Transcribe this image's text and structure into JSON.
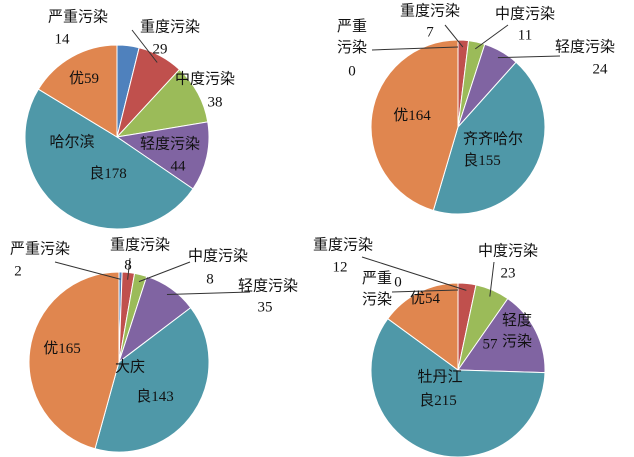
{
  "chart_data": [
    {
      "type": "pie",
      "title": "哈尔滨",
      "categories": [
        "严重污染",
        "重度污染",
        "中度污染",
        "轻度污染",
        "良",
        "优"
      ],
      "values": [
        14,
        29,
        38,
        44,
        178,
        59
      ],
      "colors": [
        "#4f81bd",
        "#c0504d",
        "#9bbb59",
        "#8064a2",
        "#4f98a8",
        "#e0864f"
      ]
    },
    {
      "type": "pie",
      "title": "齐齐哈尔",
      "categories": [
        "严重污染",
        "重度污染",
        "中度污染",
        "轻度污染",
        "良",
        "优"
      ],
      "values": [
        0,
        7,
        11,
        24,
        155,
        164
      ],
      "colors": [
        "#4f81bd",
        "#c0504d",
        "#9bbb59",
        "#8064a2",
        "#4f98a8",
        "#e0864f"
      ]
    },
    {
      "type": "pie",
      "title": "大庆",
      "categories": [
        "严重污染",
        "重度污染",
        "中度污染",
        "轻度污染",
        "良",
        "优"
      ],
      "values": [
        2,
        8,
        8,
        35,
        143,
        165
      ],
      "colors": [
        "#4f81bd",
        "#c0504d",
        "#9bbb59",
        "#8064a2",
        "#4f98a8",
        "#e0864f"
      ]
    },
    {
      "type": "pie",
      "title": "牡丹江",
      "categories": [
        "严重污染",
        "重度污染",
        "中度污染",
        "轻度污染",
        "良",
        "优"
      ],
      "values": [
        0,
        12,
        23,
        57,
        215,
        54
      ],
      "colors": [
        "#4f81bd",
        "#c0504d",
        "#9bbb59",
        "#8064a2",
        "#4f98a8",
        "#e0864f"
      ]
    }
  ]
}
